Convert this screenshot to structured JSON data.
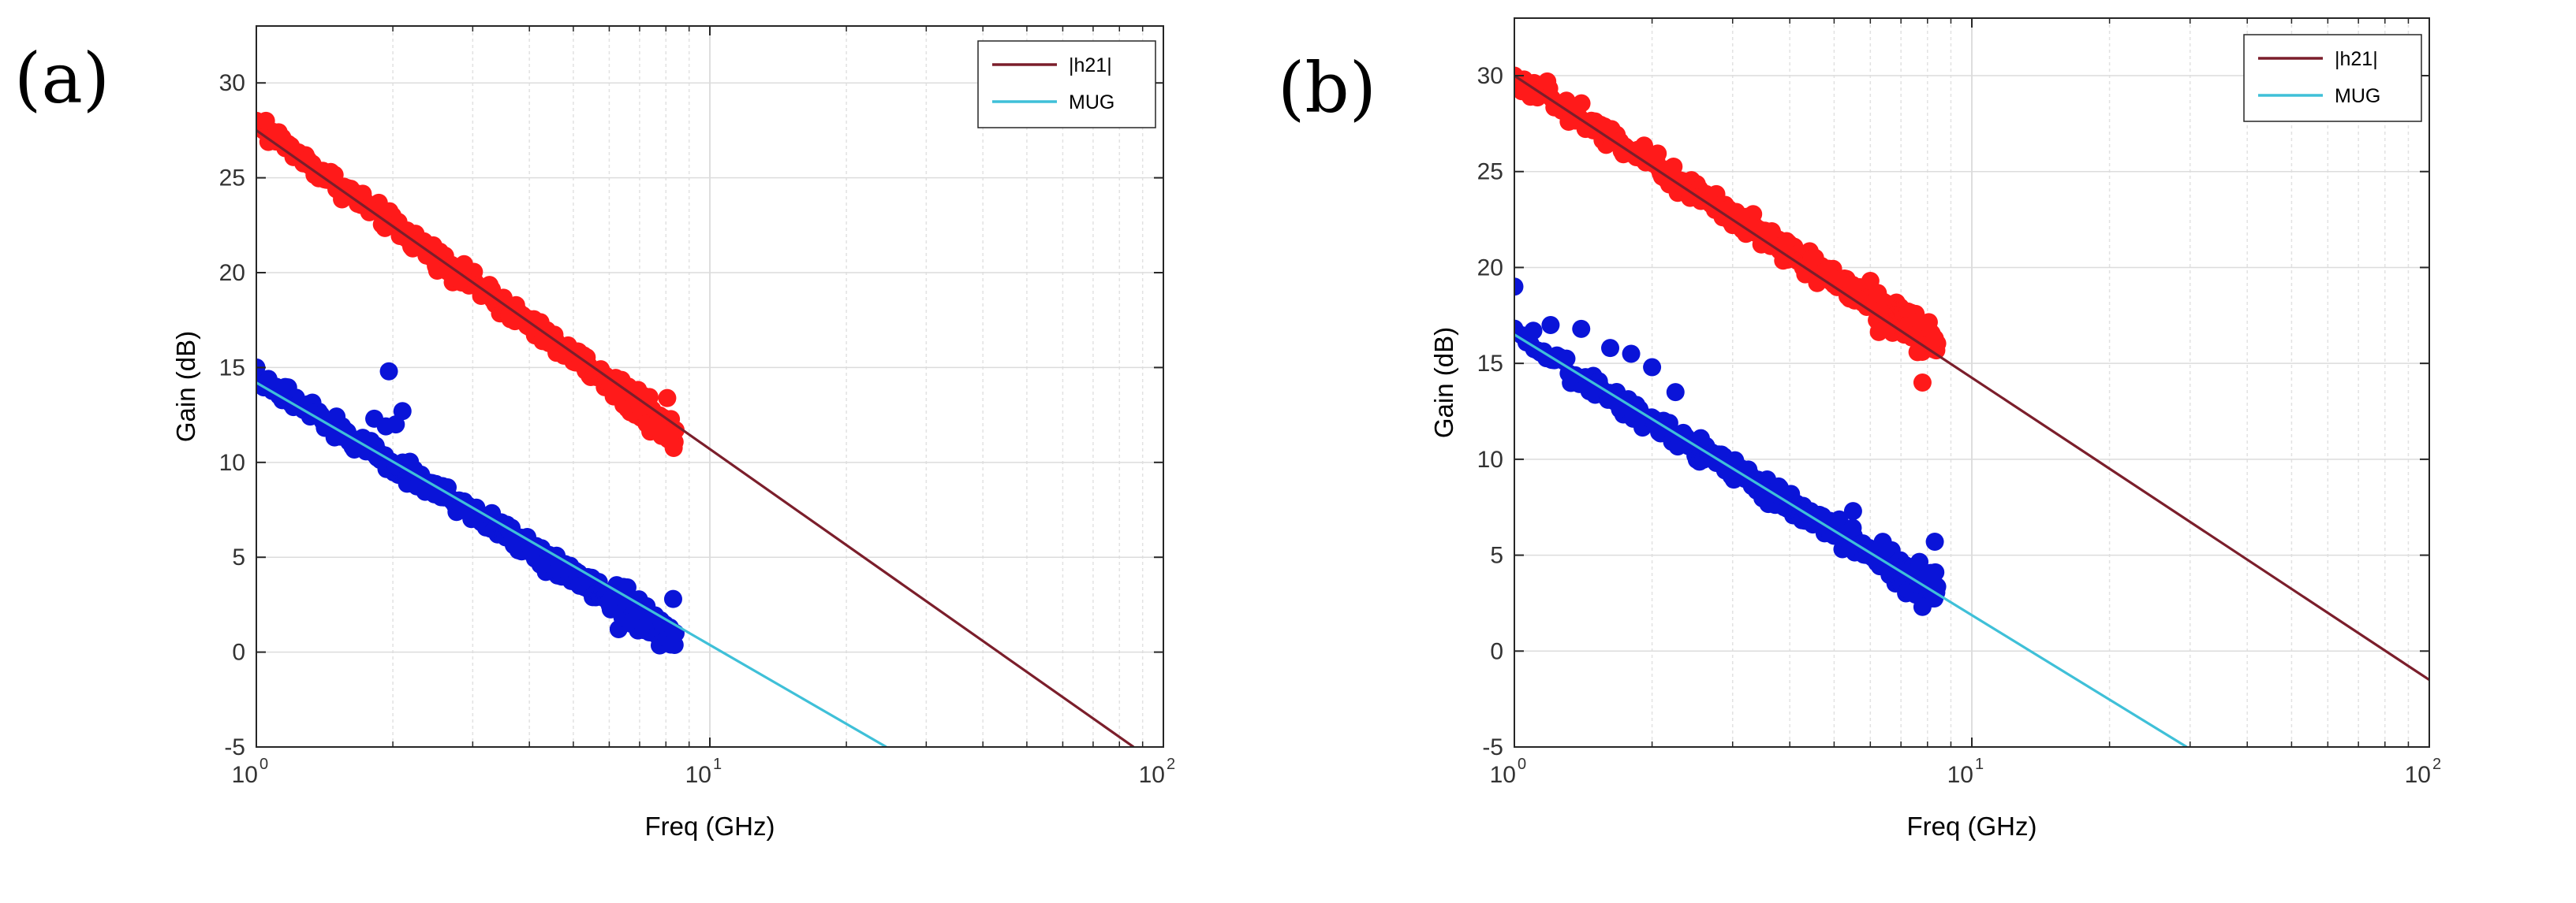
{
  "chart_data": [
    {
      "panel_label": "(a)",
      "type": "scatter",
      "x_scale": "log",
      "xlabel": "Freq (GHz)",
      "ylabel": "Gain (dB)",
      "xlim": [
        1,
        100
      ],
      "ylim": [
        -5,
        33
      ],
      "yticks": [
        -5,
        0,
        5,
        10,
        15,
        20,
        25,
        30
      ],
      "xticks": [
        {
          "base": "10",
          "exp": "0",
          "value": 1
        },
        {
          "base": "10",
          "exp": "1",
          "value": 10
        },
        {
          "base": "10",
          "exp": "2",
          "value": 100
        }
      ],
      "grid": true,
      "legend_position": "top-right",
      "legend": [
        {
          "label": "|h21|",
          "color": "#7b1e2b"
        },
        {
          "label": "MUG",
          "color": "#3fc0d8"
        }
      ],
      "fit_lines": [
        {
          "name": "|h21|",
          "color": "#7b1e2b",
          "points": [
            [
              1.0,
              27.5
            ],
            [
              86,
              -5
            ]
          ]
        },
        {
          "name": "MUG",
          "color": "#3fc0d8",
          "points": [
            [
              1.0,
              14.2
            ],
            [
              24.5,
              -5
            ]
          ]
        }
      ],
      "scatter_series": [
        {
          "name": "|h21| measured",
          "color": "#ff1a1a",
          "x_range": [
            1.0,
            8.4
          ],
          "start": 27.8,
          "slope": -17.5,
          "noise": 0.45,
          "count": 320,
          "extra_points": [
            [
              1.0,
              28.0
            ],
            [
              1.05,
              28.0
            ],
            [
              1.12,
              27.4
            ],
            [
              7.8,
              11.6
            ],
            [
              8.2,
              11.5
            ]
          ]
        },
        {
          "name": "MUG measured",
          "color": "#0a14d8",
          "x_range": [
            1.0,
            8.4
          ],
          "start": 14.4,
          "slope": -14.8,
          "noise": 0.45,
          "count": 320,
          "extra_points": [
            [
              1.0,
              15.0
            ],
            [
              1.82,
              12.3
            ],
            [
              1.96,
              14.8
            ],
            [
              2.03,
              12.0
            ],
            [
              2.1,
              12.7
            ],
            [
              1.93,
              11.9
            ],
            [
              8.2,
              0.4
            ],
            [
              8.3,
              2.8
            ]
          ]
        }
      ]
    },
    {
      "panel_label": "(b)",
      "type": "scatter",
      "x_scale": "log",
      "xlabel": "Freq (GHz)",
      "ylabel": "Gain (dB)",
      "xlim": [
        1,
        100
      ],
      "ylim": [
        -5,
        33
      ],
      "yticks": [
        -5,
        0,
        5,
        10,
        15,
        20,
        25,
        30
      ],
      "xticks": [
        {
          "base": "10",
          "exp": "0",
          "value": 1
        },
        {
          "base": "10",
          "exp": "1",
          "value": 10
        },
        {
          "base": "10",
          "exp": "2",
          "value": 100
        }
      ],
      "grid": true,
      "legend_position": "top-right",
      "legend": [
        {
          "label": "|h21|",
          "color": "#7b1e2b"
        },
        {
          "label": "MUG",
          "color": "#3fc0d8"
        }
      ],
      "fit_lines": [
        {
          "name": "|h21|",
          "color": "#7b1e2b",
          "points": [
            [
              1.0,
              30.0
            ],
            [
              100,
              -1.5
            ]
          ]
        },
        {
          "name": "MUG",
          "color": "#3fc0d8",
          "points": [
            [
              1.0,
              16.5
            ],
            [
              29.5,
              -5
            ]
          ]
        }
      ],
      "scatter_series": [
        {
          "name": "|h21| measured",
          "color": "#ff1a1a",
          "x_range": [
            1.0,
            8.4
          ],
          "start": 30.0,
          "slope": -15.2,
          "noise": 0.5,
          "count": 320,
          "extra_points": [
            [
              1.0,
              30.0
            ],
            [
              1.05,
              29.8
            ],
            [
              1.18,
              29.7
            ],
            [
              7.8,
              14.0
            ],
            [
              8.3,
              16.3
            ],
            [
              6.0,
              19.3
            ]
          ]
        },
        {
          "name": "MUG measured",
          "color": "#0a14d8",
          "x_range": [
            1.0,
            8.4
          ],
          "start": 16.3,
          "slope": -14.3,
          "noise": 0.45,
          "count": 320,
          "extra_points": [
            [
              1.0,
              19.0
            ],
            [
              1.1,
              16.7
            ],
            [
              1.2,
              17.0
            ],
            [
              1.4,
              16.8
            ],
            [
              1.62,
              15.8
            ],
            [
              1.8,
              15.5
            ],
            [
              2.0,
              14.8
            ],
            [
              2.25,
              13.5
            ],
            [
              1.5,
              13.7
            ],
            [
              5.5,
              7.3
            ],
            [
              8.3,
              5.7
            ],
            [
              7.8,
              2.3
            ]
          ]
        }
      ]
    }
  ]
}
